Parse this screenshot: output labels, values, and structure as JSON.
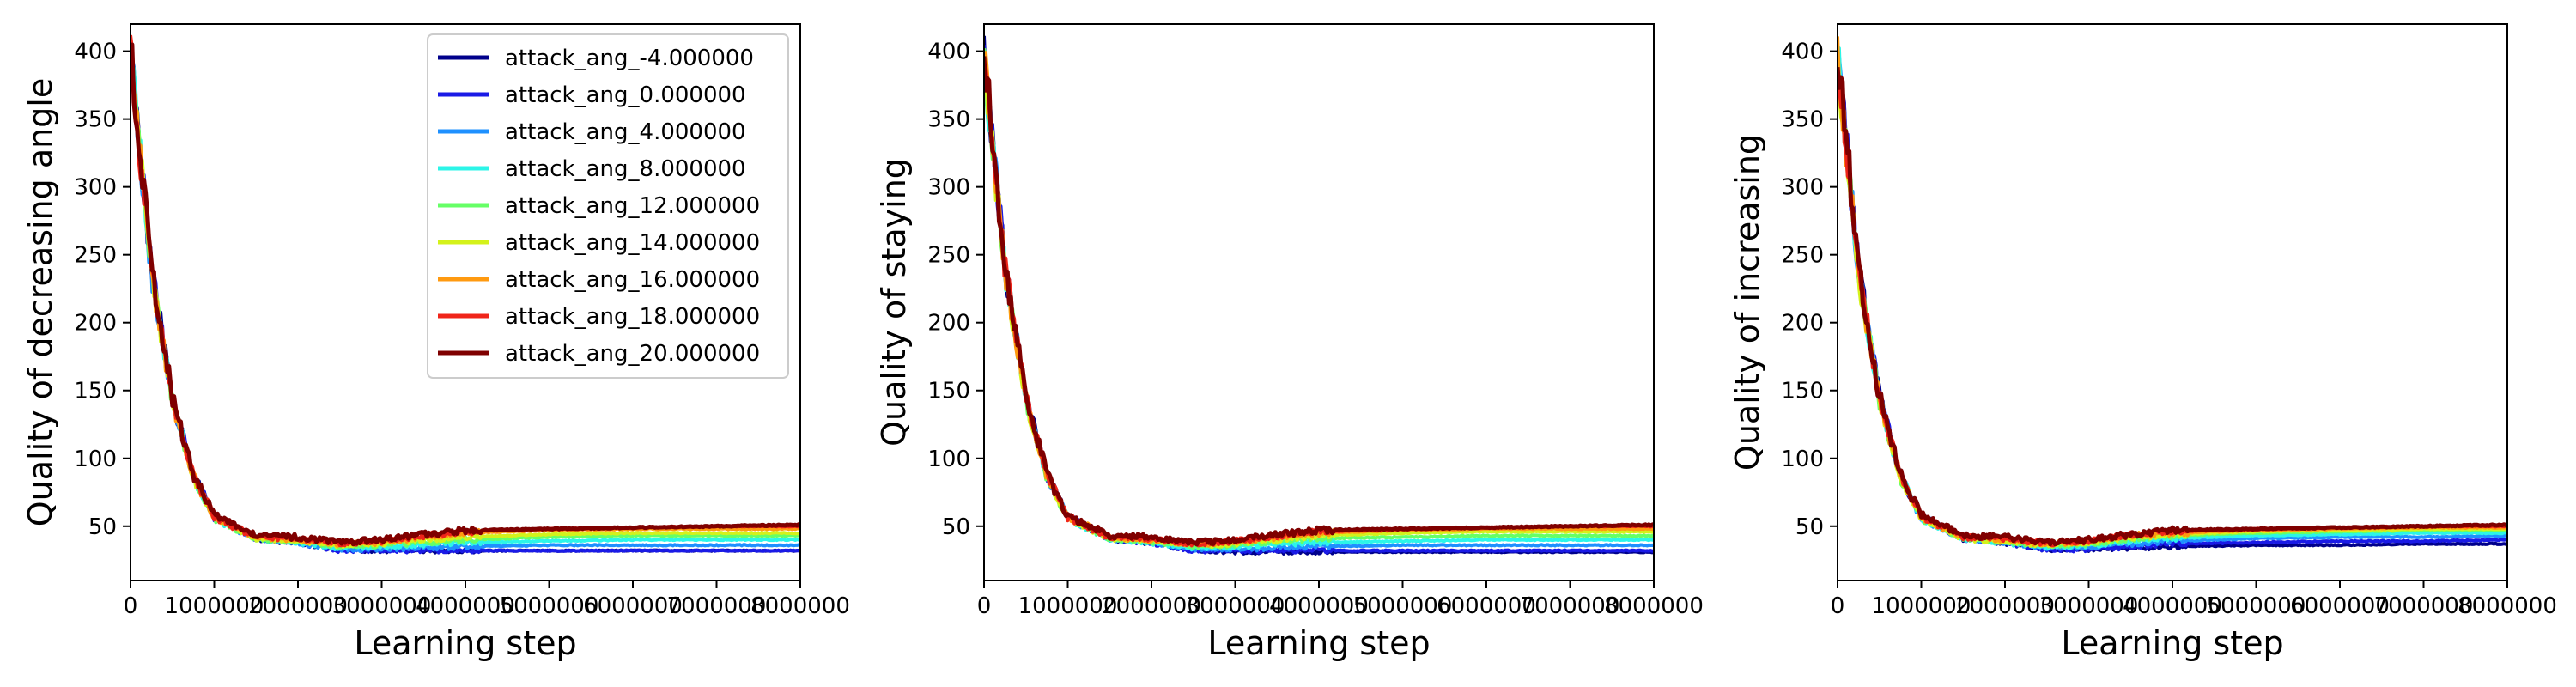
{
  "chart_data": [
    {
      "type": "line",
      "title": "",
      "xlabel": "Learning step",
      "ylabel": "Quality of decreasing angle",
      "xlim": [
        0,
        8000000
      ],
      "ylim": [
        10,
        420
      ],
      "x_ticks": [
        0,
        1000000,
        2000000,
        3000000,
        4000000,
        5000000,
        6000000,
        7000000,
        8000000
      ],
      "y_ticks": [
        50,
        100,
        150,
        200,
        250,
        300,
        350,
        400
      ],
      "legend_placement": "top-right",
      "x": [
        0,
        250000,
        500000,
        750000,
        1000000,
        1500000,
        2000000,
        2500000,
        3000000,
        3500000,
        4000000,
        5000000,
        6000000,
        7000000,
        8000000
      ],
      "series": [
        {
          "name": "attack_ang_-4.000000",
          "color": "#00008b",
          "values": [
            400,
            240,
            145,
            88,
            57,
            41,
            38,
            33,
            32,
            32,
            32,
            32,
            32,
            32,
            32
          ]
        },
        {
          "name": "attack_ang_0.000000",
          "color": "#1a1ae6",
          "values": [
            400,
            240,
            145,
            88,
            57,
            41,
            38,
            32,
            32,
            32,
            32,
            32,
            32,
            32,
            32
          ]
        },
        {
          "name": "attack_ang_4.000000",
          "color": "#1e90ff",
          "values": [
            398,
            238,
            144,
            87,
            56,
            41,
            38,
            33,
            33,
            34,
            35,
            36,
            36,
            36,
            36
          ]
        },
        {
          "name": "attack_ang_8.000000",
          "color": "#2cf5e8",
          "values": [
            396,
            237,
            143,
            87,
            56,
            41,
            38,
            34,
            35,
            36,
            38,
            39,
            40,
            40,
            40
          ]
        },
        {
          "name": "attack_ang_12.000000",
          "color": "#66ff66",
          "values": [
            394,
            236,
            143,
            86,
            56,
            41,
            39,
            35,
            36,
            38,
            40,
            42,
            43,
            43,
            43
          ]
        },
        {
          "name": "attack_ang_14.000000",
          "color": "#d4f21b",
          "values": [
            392,
            236,
            142,
            86,
            56,
            41,
            39,
            36,
            37,
            40,
            42,
            44,
            45,
            45,
            45
          ]
        },
        {
          "name": "attack_ang_16.000000",
          "color": "#ff9a10",
          "values": [
            394,
            237,
            143,
            87,
            57,
            42,
            40,
            37,
            38,
            42,
            45,
            47,
            48,
            48,
            48
          ]
        },
        {
          "name": "attack_ang_18.000000",
          "color": "#f0251a",
          "values": [
            396,
            238,
            144,
            88,
            57,
            42,
            41,
            37,
            39,
            43,
            46,
            48,
            49,
            50,
            50
          ]
        },
        {
          "name": "attack_ang_20.000000",
          "color": "#7f0000",
          "values": [
            400,
            240,
            145,
            88,
            58,
            43,
            42,
            38,
            40,
            44,
            47,
            48,
            49,
            50,
            51
          ]
        }
      ]
    },
    {
      "type": "line",
      "title": "",
      "xlabel": "Learning step",
      "ylabel": "Quality of staying",
      "xlim": [
        0,
        8000000
      ],
      "ylim": [
        10,
        420
      ],
      "x_ticks": [
        0,
        1000000,
        2000000,
        3000000,
        4000000,
        5000000,
        6000000,
        7000000,
        8000000
      ],
      "y_ticks": [
        50,
        100,
        150,
        200,
        250,
        300,
        350,
        400
      ],
      "x": [
        0,
        250000,
        500000,
        750000,
        1000000,
        1500000,
        2000000,
        2500000,
        3000000,
        3500000,
        4000000,
        5000000,
        6000000,
        7000000,
        8000000
      ],
      "series": [
        {
          "name": "attack_ang_-4.000000",
          "color": "#00008b",
          "values": [
            400,
            242,
            146,
            88,
            57,
            41,
            38,
            32,
            31,
            31,
            31,
            31,
            31,
            31,
            31
          ]
        },
        {
          "name": "attack_ang_0.000000",
          "color": "#1a1ae6",
          "values": [
            400,
            241,
            146,
            88,
            57,
            41,
            38,
            32,
            32,
            32,
            32,
            32,
            32,
            32,
            32
          ]
        },
        {
          "name": "attack_ang_4.000000",
          "color": "#1e90ff",
          "values": [
            398,
            240,
            145,
            87,
            56,
            41,
            38,
            33,
            33,
            34,
            35,
            36,
            36,
            36,
            36
          ]
        },
        {
          "name": "attack_ang_8.000000",
          "color": "#2cf5e8",
          "values": [
            396,
            239,
            144,
            87,
            56,
            41,
            38,
            34,
            35,
            37,
            38,
            39,
            40,
            40,
            40
          ]
        },
        {
          "name": "attack_ang_12.000000",
          "color": "#66ff66",
          "values": [
            394,
            238,
            143,
            86,
            56,
            41,
            39,
            35,
            36,
            39,
            41,
            42,
            43,
            43,
            43
          ]
        },
        {
          "name": "attack_ang_14.000000",
          "color": "#d4f21b",
          "values": [
            392,
            237,
            143,
            86,
            56,
            41,
            39,
            36,
            37,
            40,
            43,
            45,
            46,
            46,
            46
          ]
        },
        {
          "name": "attack_ang_16.000000",
          "color": "#ff9a10",
          "values": [
            394,
            238,
            144,
            87,
            57,
            42,
            40,
            37,
            38,
            42,
            45,
            47,
            48,
            48,
            48
          ]
        },
        {
          "name": "attack_ang_18.000000",
          "color": "#f0251a",
          "values": [
            396,
            240,
            145,
            88,
            57,
            42,
            41,
            37,
            39,
            43,
            46,
            48,
            49,
            50,
            50
          ]
        },
        {
          "name": "attack_ang_20.000000",
          "color": "#7f0000",
          "values": [
            400,
            242,
            146,
            88,
            58,
            43,
            42,
            38,
            40,
            44,
            47,
            48,
            49,
            50,
            51
          ]
        }
      ]
    },
    {
      "type": "line",
      "title": "",
      "xlabel": "Learning step",
      "ylabel": "Quality of increasing",
      "xlim": [
        0,
        8000000
      ],
      "ylim": [
        10,
        420
      ],
      "x_ticks": [
        0,
        1000000,
        2000000,
        3000000,
        4000000,
        5000000,
        6000000,
        7000000,
        8000000
      ],
      "y_ticks": [
        50,
        100,
        150,
        200,
        250,
        300,
        350,
        400
      ],
      "x": [
        0,
        250000,
        500000,
        750000,
        1000000,
        1500000,
        2000000,
        2500000,
        3000000,
        3500000,
        4000000,
        5000000,
        6000000,
        7000000,
        8000000
      ],
      "series": [
        {
          "name": "attack_ang_-4.000000",
          "color": "#00008b",
          "values": [
            400,
            240,
            146,
            88,
            57,
            41,
            38,
            33,
            33,
            34,
            35,
            36,
            36,
            37,
            37
          ]
        },
        {
          "name": "attack_ang_0.000000",
          "color": "#1a1ae6",
          "values": [
            400,
            240,
            146,
            88,
            57,
            41,
            38,
            33,
            33,
            35,
            37,
            38,
            39,
            39,
            40
          ]
        },
        {
          "name": "attack_ang_4.000000",
          "color": "#1e90ff",
          "values": [
            398,
            239,
            145,
            87,
            56,
            41,
            38,
            34,
            34,
            37,
            39,
            41,
            42,
            42,
            43
          ]
        },
        {
          "name": "attack_ang_8.000000",
          "color": "#2cf5e8",
          "values": [
            396,
            238,
            144,
            87,
            56,
            41,
            38,
            35,
            36,
            39,
            41,
            43,
            44,
            45,
            45
          ]
        },
        {
          "name": "attack_ang_12.000000",
          "color": "#66ff66",
          "values": [
            394,
            237,
            143,
            86,
            56,
            41,
            39,
            36,
            37,
            41,
            43,
            45,
            46,
            47,
            47
          ]
        },
        {
          "name": "attack_ang_14.000000",
          "color": "#d4f21b",
          "values": [
            392,
            236,
            143,
            86,
            56,
            41,
            39,
            36,
            38,
            42,
            44,
            46,
            47,
            48,
            48
          ]
        },
        {
          "name": "attack_ang_16.000000",
          "color": "#ff9a10",
          "values": [
            394,
            237,
            144,
            87,
            57,
            42,
            40,
            37,
            39,
            43,
            45,
            47,
            48,
            49,
            49
          ]
        },
        {
          "name": "attack_ang_18.000000",
          "color": "#f0251a",
          "values": [
            396,
            239,
            145,
            88,
            57,
            42,
            41,
            37,
            39,
            44,
            46,
            48,
            49,
            50,
            50
          ]
        },
        {
          "name": "attack_ang_20.000000",
          "color": "#7f0000",
          "values": [
            400,
            241,
            146,
            88,
            58,
            43,
            42,
            38,
            40,
            44,
            47,
            48,
            49,
            50,
            51
          ]
        }
      ]
    }
  ]
}
